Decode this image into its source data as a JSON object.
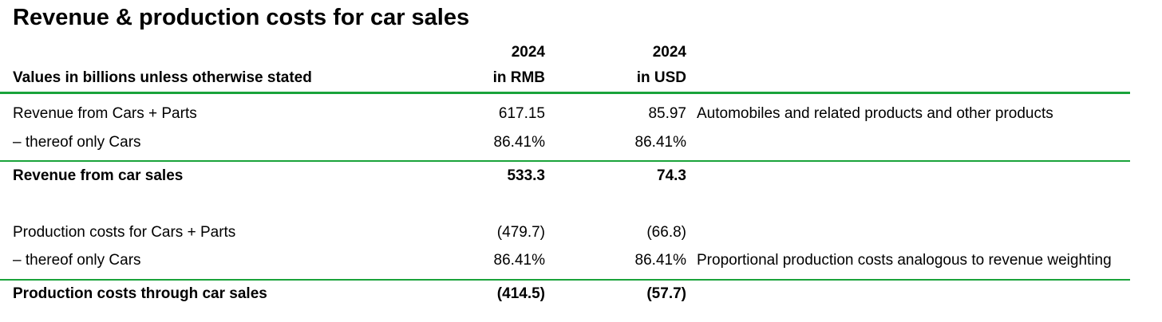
{
  "title": "Revenue & production costs for car sales",
  "header": {
    "label": "Values in billions unless otherwise stated",
    "rmb_year": "2024",
    "rmb_unit": "in RMB",
    "usd_year": "2024",
    "usd_unit": "in USD"
  },
  "rows": [
    {
      "label": "Revenue from Cars + Parts",
      "rmb": "617.15",
      "usd": "85.97",
      "note": "Automobiles and related products and other products"
    },
    {
      "label": "– thereof only Cars",
      "rmb": "86.41%",
      "usd": "86.41%",
      "note": ""
    },
    {
      "label": "Revenue from car sales",
      "rmb": "533.3",
      "usd": "74.3",
      "note": ""
    },
    {
      "label": "Production costs for Cars + Parts",
      "rmb": "(479.7)",
      "usd": "(66.8)",
      "note": ""
    },
    {
      "label": "– thereof only Cars",
      "rmb": "86.41%",
      "usd": "86.41%",
      "note": "Proportional production costs analogous to revenue weighting"
    },
    {
      "label": "Production costs through car sales",
      "rmb": "(414.5)",
      "usd": "(57.7)",
      "note": ""
    }
  ],
  "colors": {
    "rule": "#1aa33b"
  }
}
